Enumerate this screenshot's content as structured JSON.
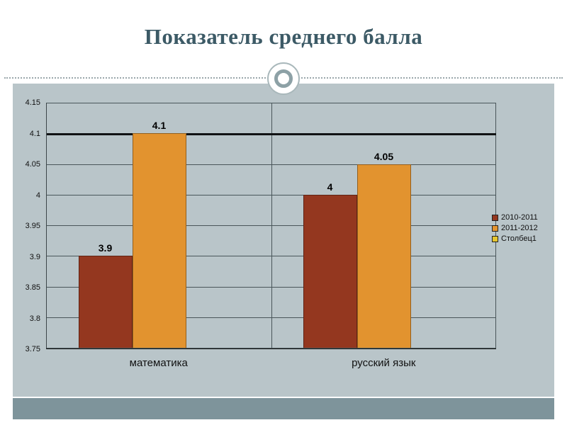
{
  "slide": {
    "title": "Показатель среднего балла"
  },
  "chart_data": {
    "type": "bar",
    "title": "Показатель среднего балла",
    "categories": [
      "математика",
      "русский язык"
    ],
    "series": [
      {
        "name": "2010-2011",
        "color": "#94371f",
        "values": [
          3.9,
          4.0
        ]
      },
      {
        "name": "2011-2012",
        "color": "#e2932f",
        "values": [
          4.1,
          4.05
        ]
      },
      {
        "name": "Столбец1",
        "color": "#e5c52e",
        "values": [
          null,
          null
        ]
      }
    ],
    "value_labels": [
      [
        "3.9",
        "4.1",
        null
      ],
      [
        "4",
        "4.05",
        null
      ]
    ],
    "ylim": [
      3.75,
      4.15
    ],
    "ytick_step": 0.05,
    "yticks": [
      "4.15",
      "4.1",
      "4.05",
      "4",
      "3.95",
      "3.9",
      "3.85",
      "3.8",
      "3.75"
    ],
    "emphasized_gridline": "4.1",
    "grid": true,
    "legend_position": "right",
    "panel_color": "#b9c5c9",
    "footer_color": "#7e949b",
    "title_color": "#3c5a66"
  }
}
